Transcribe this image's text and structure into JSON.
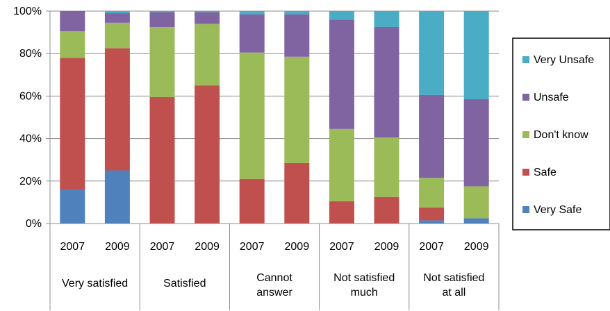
{
  "chart_data": {
    "type": "bar",
    "stacked": true,
    "percent": true,
    "title": "",
    "xlabel": "",
    "ylabel": "",
    "ylim": [
      0,
      100
    ],
    "yticks": [
      "0%",
      "20%",
      "40%",
      "60%",
      "80%",
      "100%"
    ],
    "grid": true,
    "legend_position": "right",
    "categories": [
      "2007",
      "2009",
      "2007",
      "2009",
      "2007",
      "2009",
      "2007",
      "2009",
      "2007",
      "2009"
    ],
    "groups": [
      {
        "lines": [
          "Very satisfied"
        ]
      },
      {
        "lines": [
          "Satisfied"
        ]
      },
      {
        "lines": [
          "Cannot",
          "answer"
        ]
      },
      {
        "lines": [
          "Not satisfied",
          "much"
        ]
      },
      {
        "lines": [
          "Not satisfied",
          "at all"
        ]
      }
    ],
    "series": [
      {
        "name": "Very Safe",
        "color": "#4F81BD",
        "values": [
          16,
          25,
          0,
          0,
          0,
          0,
          0,
          0,
          1.5,
          2.5
        ]
      },
      {
        "name": "Safe",
        "color": "#C0504D",
        "values": [
          62,
          57.5,
          59.5,
          65,
          21,
          28.5,
          10.5,
          12.5,
          6,
          0
        ]
      },
      {
        "name": "Don't know",
        "color": "#9BBB59",
        "values": [
          12.5,
          12,
          33,
          29,
          59.5,
          50,
          34,
          28,
          14,
          15
        ]
      },
      {
        "name": "Unsafe",
        "color": "#8064A2",
        "values": [
          9.5,
          4.5,
          7,
          5.5,
          18,
          20,
          51.5,
          52,
          39,
          41
        ]
      },
      {
        "name": "Very Unsafe",
        "color": "#4BACC6",
        "values": [
          0,
          1,
          0.5,
          0.5,
          1.5,
          1.5,
          4,
          7.5,
          39.5,
          41.5
        ]
      }
    ]
  }
}
